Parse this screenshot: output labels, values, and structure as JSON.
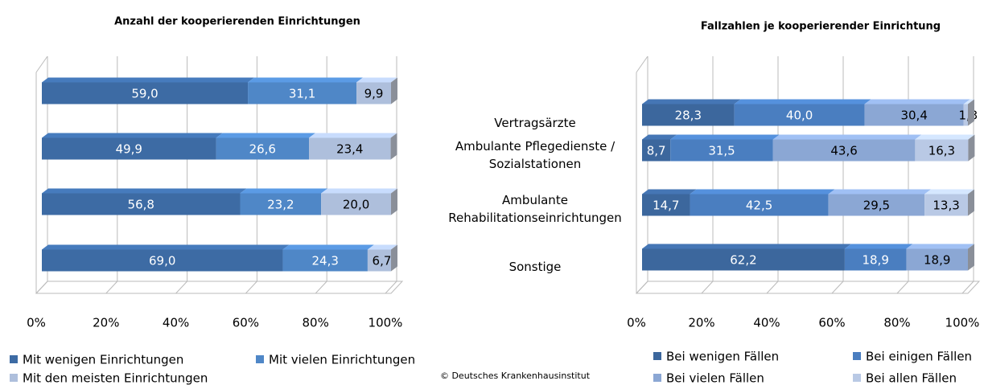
{
  "chart_data": [
    {
      "type": "bar",
      "orientation": "horizontal",
      "stacked": true,
      "title": "Anzahl der kooperierenden Einrichtungen",
      "series": [
        {
          "name": "Mit wenigen Einrichtungen",
          "color": "#3d6ba4",
          "values": [
            59.0,
            49.9,
            56.8,
            69.0
          ],
          "value_labels": [
            "59,0",
            "49,9",
            "56,8",
            "69,0"
          ]
        },
        {
          "name": "Mit vielen Einrichtungen",
          "color": "#4f87c7",
          "values": [
            31.1,
            26.6,
            23.2,
            24.3
          ],
          "value_labels": [
            "31,1",
            "26,6",
            "23,2",
            "24,3"
          ]
        },
        {
          "name": "Mit den meisten Einrichtungen",
          "color": "#aebfdc",
          "values": [
            9.9,
            23.4,
            20.0,
            6.7
          ],
          "value_labels": [
            "9,9",
            "23,4",
            "20,0",
            "6,7"
          ]
        }
      ],
      "xlim": [
        0,
        100
      ],
      "xticks": [
        {
          "value": 0,
          "label": "0%"
        },
        {
          "value": 20,
          "label": "20%"
        },
        {
          "value": 40,
          "label": "40%"
        },
        {
          "value": 60,
          "label": "60%"
        },
        {
          "value": 80,
          "label": "80%"
        },
        {
          "value": 100,
          "label": "100%"
        }
      ],
      "grid": true
    },
    {
      "type": "bar",
      "orientation": "horizontal",
      "stacked": true,
      "title": "Fallzahlen je kooperierender Einrichtung",
      "categories": [
        "Vertragsärzte",
        "Ambulante Pflegedienste / Sozialstationen",
        "Ambulante Rehabilitationseinrichtungen",
        "Sonstige"
      ],
      "series": [
        {
          "name": "Bei wenigen Fällen",
          "color": "#3c679d",
          "values": [
            28.3,
            8.7,
            14.7,
            62.2
          ],
          "value_labels": [
            "28,3",
            "8,7",
            "14,7",
            "62,2"
          ]
        },
        {
          "name": "Bei einigen Fällen",
          "color": "#4a7ec0",
          "values": [
            40.0,
            31.5,
            42.5,
            18.9
          ],
          "value_labels": [
            "40,0",
            "31,5",
            "42,5",
            "18,9"
          ]
        },
        {
          "name": "Bei vielen Fällen",
          "color": "#8ba7d4",
          "values": [
            30.4,
            43.6,
            29.5,
            18.9
          ],
          "value_labels": [
            "30,4",
            "43,6",
            "29,5",
            "18,9"
          ]
        },
        {
          "name": "Bei allen Fällen",
          "color": "#b9c9e5",
          "values": [
            1.3,
            16.3,
            13.3,
            null
          ],
          "value_labels": [
            "1,3",
            "16,3",
            "13,3",
            null
          ]
        }
      ],
      "xlim": [
        0,
        100
      ],
      "xticks": [
        {
          "value": 0,
          "label": "0%"
        },
        {
          "value": 20,
          "label": "20%"
        },
        {
          "value": 40,
          "label": "40%"
        },
        {
          "value": 60,
          "label": "60%"
        },
        {
          "value": 80,
          "label": "80%"
        },
        {
          "value": 100,
          "label": "100%"
        }
      ],
      "grid": true
    }
  ],
  "source": "© Deutsches Krankenhausinstitut"
}
